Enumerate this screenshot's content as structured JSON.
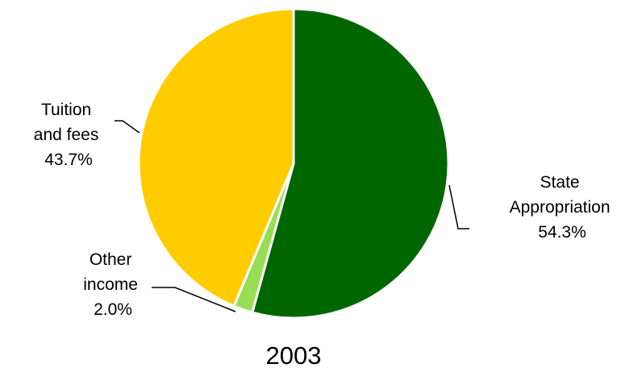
{
  "chart_data": {
    "type": "pie",
    "title": "2003",
    "slices": [
      {
        "line1": "State",
        "line2": "Appropriation",
        "pct": "54.3%",
        "value": 54.3,
        "color": "#006600"
      },
      {
        "line1": "Other",
        "line2": "income",
        "pct": "2.0%",
        "value": 2.0,
        "color": "#99dd55"
      },
      {
        "line1": "Tuition",
        "line2": "and fees",
        "pct": "43.7%",
        "value": 43.7,
        "color": "#ffcc00"
      }
    ]
  }
}
